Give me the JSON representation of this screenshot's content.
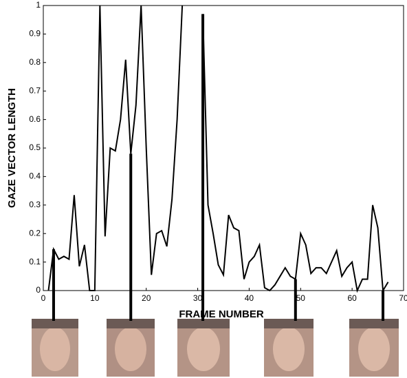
{
  "chart_data": {
    "type": "line",
    "x_label": "FRAME NUMBER",
    "y_label": "GAZE VECTOR LENGTH",
    "x": [
      1,
      2,
      3,
      4,
      5,
      6,
      7,
      8,
      9,
      10,
      11,
      12,
      13,
      14,
      15,
      16,
      17,
      18,
      19,
      20,
      21,
      22,
      23,
      24,
      25,
      26,
      27,
      28,
      29,
      30,
      31,
      32,
      33,
      34,
      35,
      36,
      37,
      38,
      39,
      40,
      41,
      42,
      43,
      44,
      45,
      46,
      47,
      48,
      49,
      50,
      51,
      52,
      53,
      54,
      55,
      56,
      57,
      58,
      59,
      60,
      61,
      62,
      63,
      64,
      65,
      66,
      67,
      68
    ],
    "values": [
      0,
      0.145,
      0.11,
      0.12,
      0.11,
      0.335,
      0.085,
      0.16,
      0,
      0,
      1,
      0.19,
      0.5,
      0.49,
      0.6,
      0.81,
      0.48,
      0.65,
      1,
      0.5,
      0.055,
      0.2,
      0.21,
      0.155,
      0.32,
      0.6,
      1,
      null,
      null,
      null,
      0.97,
      0.3,
      0.2,
      0.09,
      0.055,
      0.265,
      0.22,
      0.21,
      0.04,
      0.1,
      0.12,
      0.16,
      0.01,
      0,
      0.02,
      0.05,
      0.08,
      0.05,
      0.04,
      0.2,
      0.16,
      0.06,
      0.08,
      0.08,
      0.06,
      0.1,
      0.14,
      0.05,
      0.08,
      0.1,
      0,
      0.04,
      0.04,
      0.3,
      0.22,
      0,
      0.03,
      null
    ],
    "color": "#000000",
    "marker_frames": [
      2,
      17,
      31,
      49,
      66
    ],
    "xlim": [
      0,
      70
    ],
    "xticks": [
      0,
      10,
      20,
      30,
      40,
      50,
      60,
      70
    ],
    "ylim": [
      0,
      1
    ],
    "yticks": [
      0,
      0.1,
      0.2,
      0.3,
      0.4,
      0.5,
      0.6,
      0.7,
      0.8,
      0.9,
      1
    ],
    "grid": false
  }
}
